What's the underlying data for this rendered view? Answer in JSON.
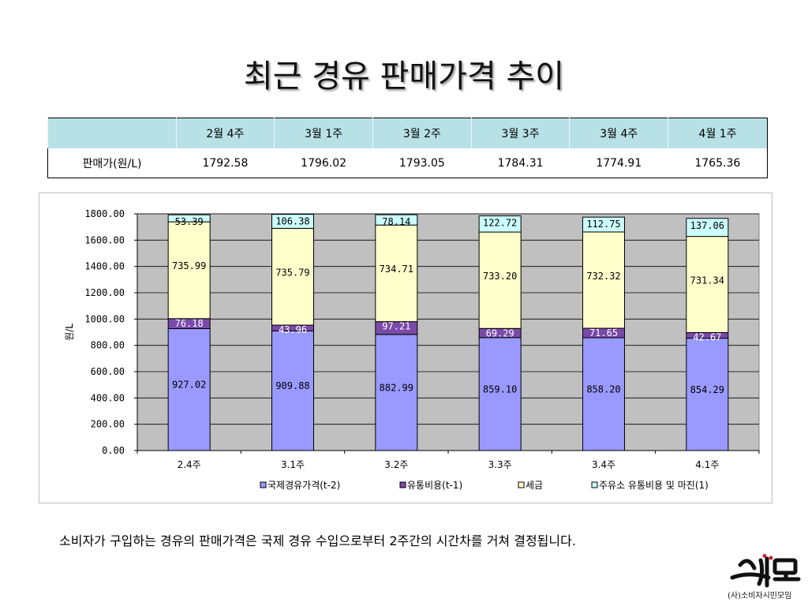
{
  "title": "최근 경유 판매가격 추이",
  "table": {
    "headers": [
      "",
      "2월 4주",
      "3월 1주",
      "3월 2주",
      "3월 3주",
      "3월 4주",
      "4월 1주"
    ],
    "row_label": "판매가(원/L)",
    "row_values": [
      "1792.58",
      "1796.02",
      "1793.05",
      "1784.31",
      "1774.91",
      "1765.36"
    ]
  },
  "chart_data": {
    "type": "bar",
    "stacked": true,
    "categories": [
      "2.4주",
      "3.1주",
      "3.2주",
      "3.3주",
      "3.4주",
      "4.1주"
    ],
    "series": [
      {
        "name": "국제경유가격(t-2)",
        "values": [
          927.02,
          909.88,
          882.99,
          859.1,
          858.2,
          854.29
        ],
        "labels": [
          "927.02",
          "909.88",
          "882.99",
          "859.10",
          "858.20",
          "854.29"
        ],
        "color": "#9999ff"
      },
      {
        "name": "유통비용(t-1)",
        "values": [
          76.18,
          43.96,
          97.21,
          69.29,
          71.65,
          42.67
        ],
        "labels": [
          "76.18",
          "43.96",
          "97.21",
          "69.29",
          "71.65",
          "42.67"
        ],
        "color": "#7a4aa8"
      },
      {
        "name": "세금",
        "values": [
          735.99,
          735.79,
          734.71,
          733.2,
          732.32,
          731.34
        ],
        "labels": [
          "735.99",
          "735.79",
          "734.71",
          "733.20",
          "732.32",
          "731.34"
        ],
        "color": "#ffffcc"
      },
      {
        "name": "주유소 유통비용 및 마진(1)",
        "values": [
          53.39,
          106.38,
          78.14,
          122.72,
          112.75,
          137.06
        ],
        "labels": [
          "53.39",
          "106.38",
          "78.14",
          "122.72",
          "112.75",
          "137.06"
        ],
        "color": "#ccffff"
      }
    ],
    "ylabel": "원/L",
    "ylim": [
      0,
      1800
    ],
    "yticks": [
      "0.00",
      "200.00",
      "400.00",
      "600.00",
      "800.00",
      "1000.00",
      "1200.00",
      "1400.00",
      "1600.00",
      "1800.00"
    ],
    "grid": true,
    "legend": "bottom",
    "plot_background": "#c0c0c0"
  },
  "caption": "소비자가 구입하는 경유의 판매가격은 국제 경유 수입으로부터 2주간의 시간차를 거쳐 결정됩니다.",
  "logo": {
    "mark": "소시모",
    "org": "(사)소비자시민모임"
  }
}
